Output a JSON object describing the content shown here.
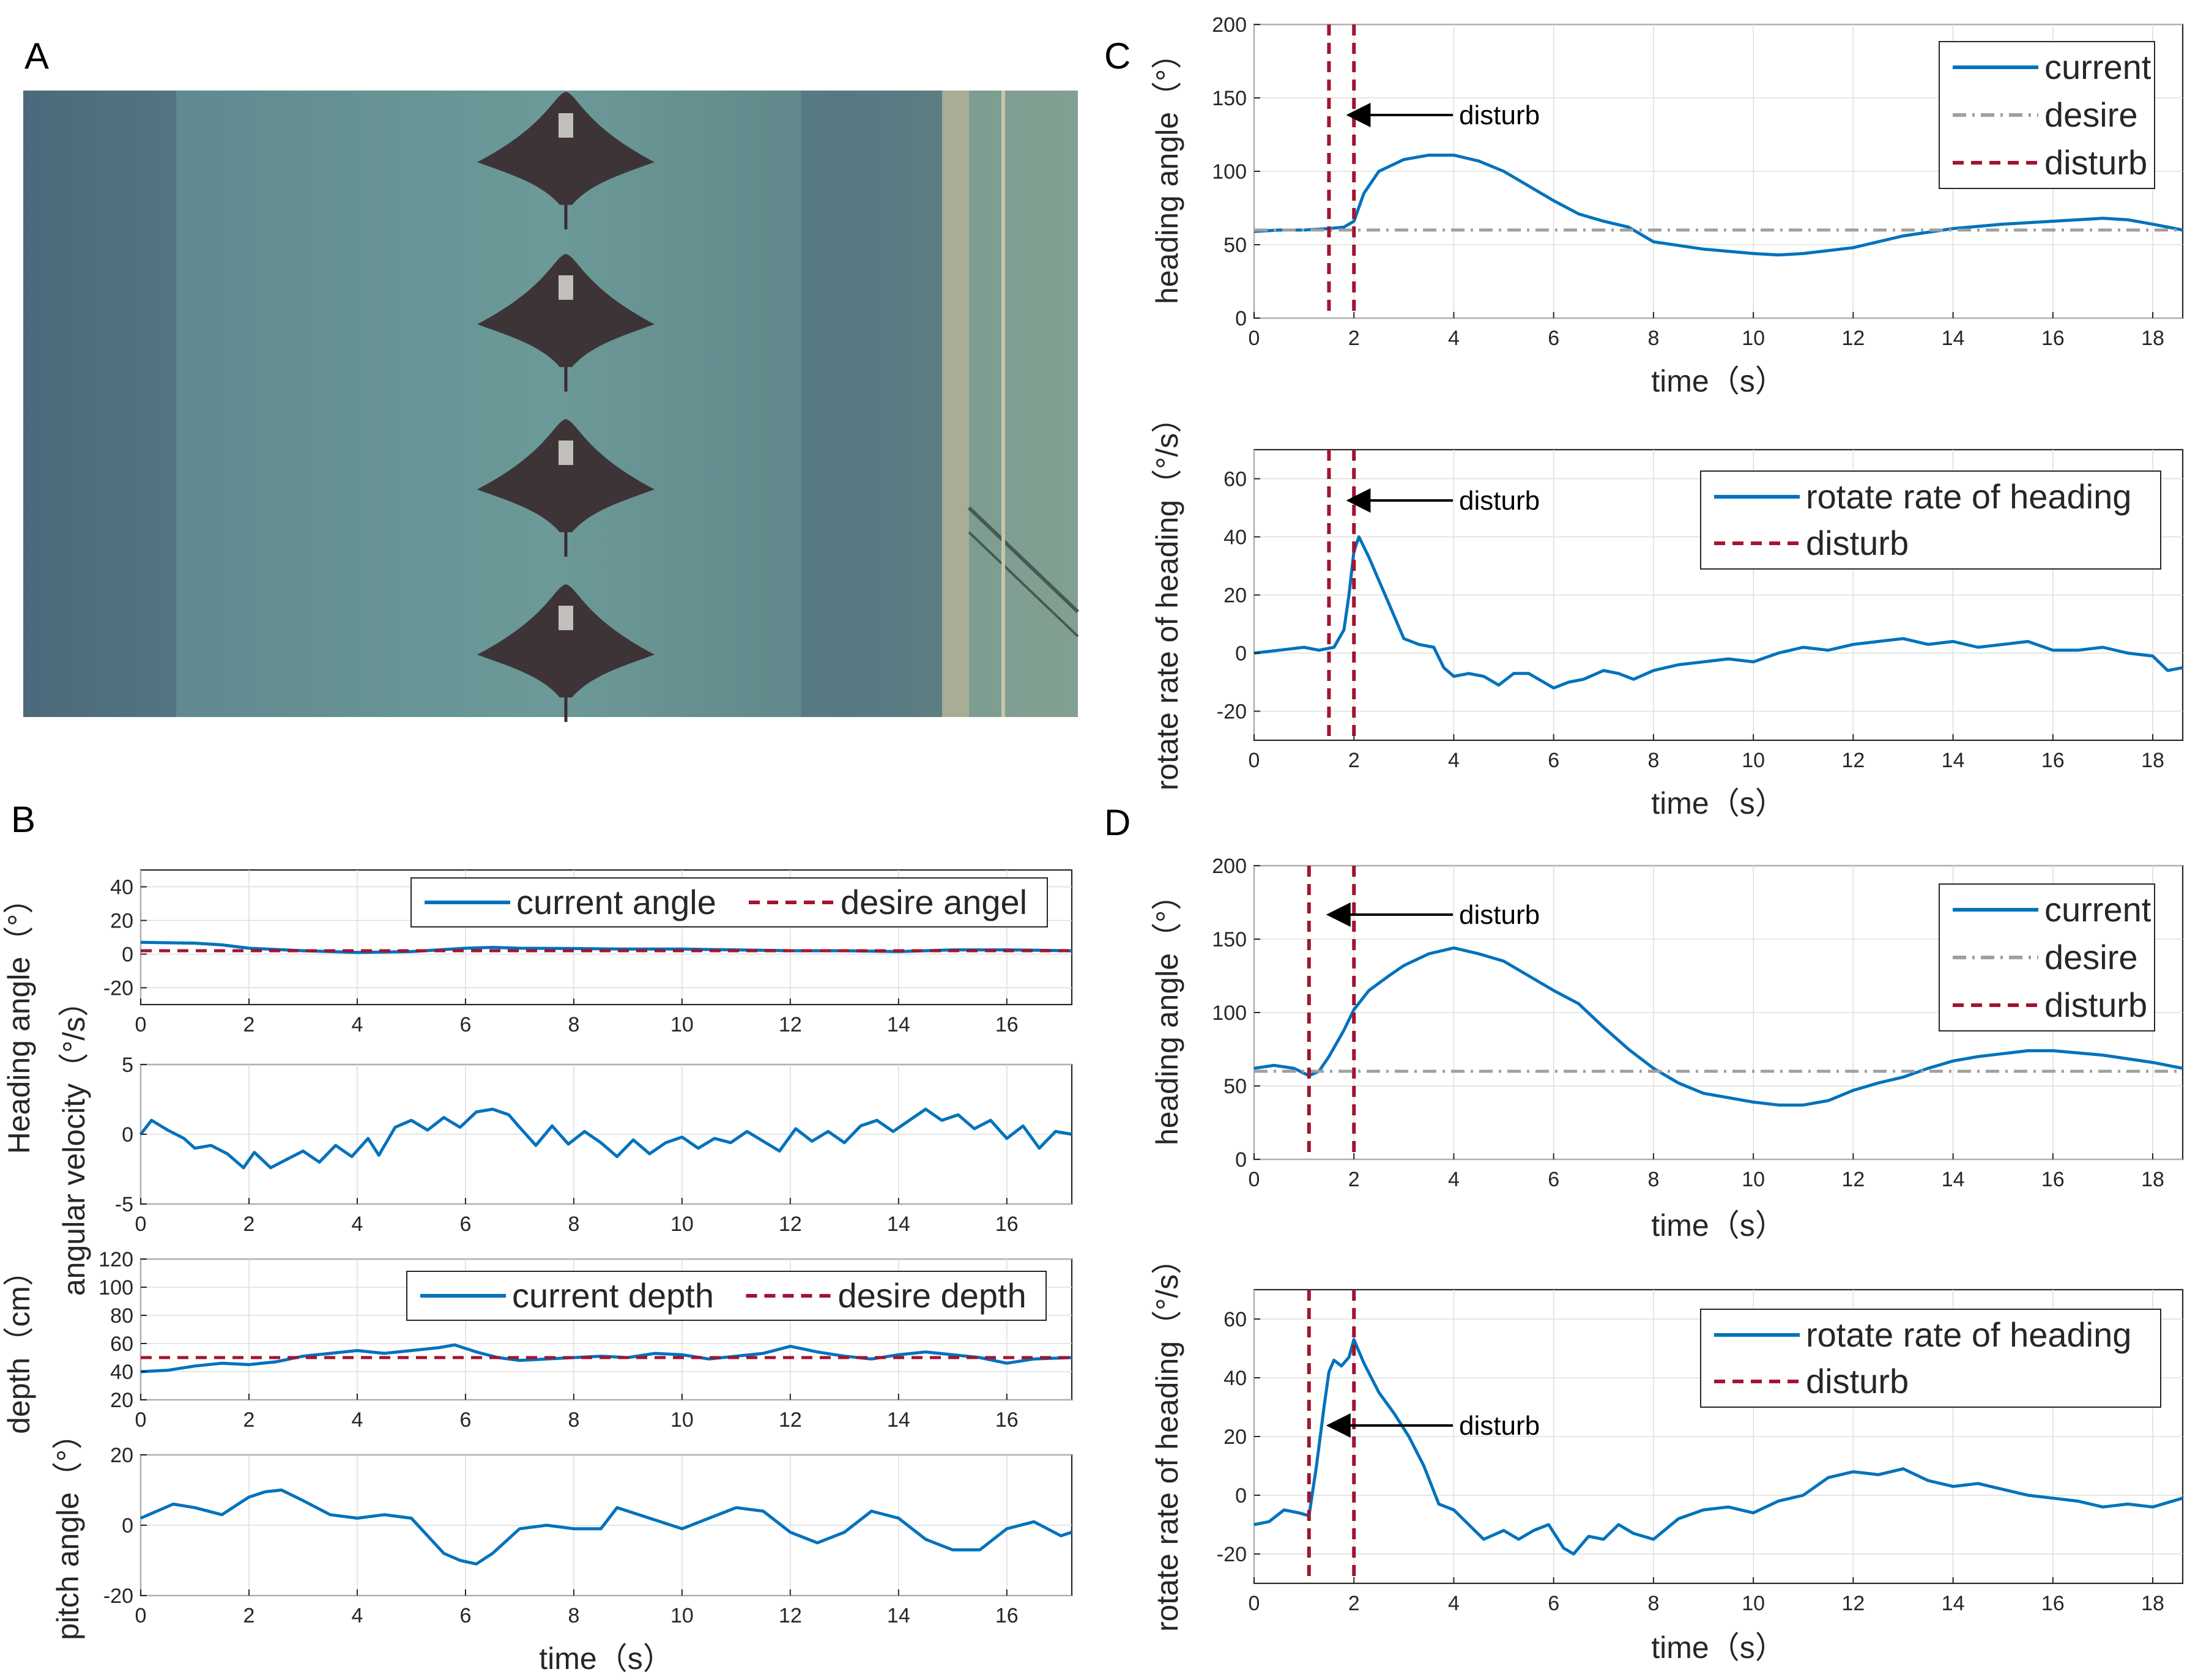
{
  "panel_labels": [
    "A",
    "B",
    "C",
    "D"
  ],
  "colors": {
    "current": "#0072BD",
    "desire_red": "#A2142F",
    "desire_gray": "#A0A0A0",
    "axis": "#262626"
  },
  "photo": {
    "description_icon": "manta-ray-robot-icon",
    "count": 4
  },
  "chart_data": [
    {
      "id": "B1",
      "type": "line",
      "ylabel": "Heading angle（°）",
      "xlim": [
        0,
        17.2
      ],
      "ylim": [
        -30,
        50
      ],
      "xticks": [
        0,
        2,
        4,
        6,
        8,
        10,
        12,
        14,
        16
      ],
      "yticks": [
        -20,
        0,
        20,
        40
      ],
      "legend_placement": "top-right",
      "legend_layout": "horizontal",
      "series": [
        {
          "name": "current angle",
          "style": "solid",
          "color": "#0072BD",
          "x": [
            0,
            1,
            1.5,
            2,
            3,
            4,
            5,
            6,
            6.5,
            7,
            8,
            9,
            10,
            11,
            12,
            13,
            14,
            15,
            16,
            17.2
          ],
          "y": [
            7,
            6.5,
            5.5,
            3.5,
            2,
            1,
            1.5,
            3.5,
            4,
            3.5,
            3.3,
            3,
            3,
            2.5,
            2,
            2,
            1.5,
            2.5,
            2.5,
            2
          ]
        },
        {
          "name": "desire angel",
          "style": "dashed",
          "color": "#A2142F",
          "x": [
            0,
            17.2
          ],
          "y": [
            2,
            2
          ]
        }
      ]
    },
    {
      "id": "B2",
      "type": "line",
      "ylabel": "angular velocity（°/s）",
      "xlim": [
        0,
        17.2
      ],
      "ylim": [
        -5,
        5
      ],
      "xticks": [
        0,
        2,
        4,
        6,
        8,
        10,
        12,
        14,
        16
      ],
      "yticks": [
        -5,
        0,
        5
      ],
      "series": [
        {
          "name": "",
          "style": "solid",
          "color": "#0072BD",
          "x": [
            0,
            0.2,
            0.5,
            0.8,
            1,
            1.3,
            1.6,
            1.9,
            2.1,
            2.4,
            2.7,
            3,
            3.3,
            3.6,
            3.9,
            4.2,
            4.4,
            4.7,
            5,
            5.3,
            5.6,
            5.9,
            6.2,
            6.5,
            6.8,
            7,
            7.3,
            7.6,
            7.9,
            8.2,
            8.5,
            8.8,
            9.1,
            9.4,
            9.7,
            10,
            10.3,
            10.6,
            10.9,
            11.2,
            11.5,
            11.8,
            12.1,
            12.4,
            12.7,
            13,
            13.3,
            13.6,
            13.9,
            14.2,
            14.5,
            14.8,
            15.1,
            15.4,
            15.7,
            16,
            16.3,
            16.6,
            16.9,
            17.2
          ],
          "y": [
            0,
            1,
            0.3,
            -0.3,
            -1,
            -0.8,
            -1.4,
            -2.4,
            -1.3,
            -2.4,
            -1.8,
            -1.2,
            -2,
            -0.8,
            -1.6,
            -0.3,
            -1.5,
            0.5,
            1,
            0.3,
            1.2,
            0.5,
            1.6,
            1.8,
            1.4,
            0.5,
            -0.8,
            0.6,
            -0.7,
            0.2,
            -0.6,
            -1.6,
            -0.4,
            -1.4,
            -0.6,
            -0.2,
            -1,
            -0.3,
            -0.6,
            0.2,
            -0.5,
            -1.2,
            0.4,
            -0.5,
            0.2,
            -0.6,
            0.6,
            1,
            0.2,
            1,
            1.8,
            1,
            1.4,
            0.4,
            1,
            -0.3,
            0.6,
            -1,
            0.2,
            0
          ]
        }
      ]
    },
    {
      "id": "B3",
      "type": "line",
      "ylabel": "depth（cm）",
      "xlim": [
        0,
        17.2
      ],
      "ylim": [
        20,
        120
      ],
      "xticks": [
        0,
        2,
        4,
        6,
        8,
        10,
        12,
        14,
        16
      ],
      "yticks": [
        20,
        40,
        60,
        80,
        100,
        120
      ],
      "legend_placement": "top-right",
      "legend_layout": "horizontal",
      "series": [
        {
          "name": "current depth",
          "style": "solid",
          "color": "#0072BD",
          "x": [
            0,
            0.5,
            1,
            1.5,
            2,
            2.5,
            3,
            3.5,
            4,
            4.5,
            5,
            5.5,
            5.8,
            6.2,
            6.6,
            7,
            7.5,
            8,
            8.5,
            9,
            9.5,
            10,
            10.5,
            11,
            11.5,
            12,
            12.5,
            13,
            13.5,
            14,
            14.5,
            15,
            15.5,
            16,
            16.5,
            17.2
          ],
          "y": [
            40,
            41,
            44,
            46,
            45,
            47,
            51,
            53,
            55,
            53,
            55,
            57,
            59,
            54,
            50,
            48,
            49,
            50,
            51,
            50,
            53,
            52,
            49,
            51,
            53,
            58,
            54,
            51,
            49,
            52,
            54,
            52,
            50,
            46,
            49,
            50
          ]
        },
        {
          "name": "desire depth",
          "style": "dashed",
          "color": "#A2142F",
          "x": [
            0,
            17.2
          ],
          "y": [
            50,
            50
          ]
        }
      ]
    },
    {
      "id": "B4",
      "type": "line",
      "ylabel": "pitch angle（°）",
      "xlabel": "time（s）",
      "xlim": [
        0,
        17.2
      ],
      "ylim": [
        -20,
        20
      ],
      "xticks": [
        0,
        2,
        4,
        6,
        8,
        10,
        12,
        14,
        16
      ],
      "yticks": [
        -20,
        0,
        20
      ],
      "series": [
        {
          "name": "",
          "style": "solid",
          "color": "#0072BD",
          "x": [
            0,
            0.3,
            0.6,
            1,
            1.5,
            2,
            2.3,
            2.6,
            3,
            3.5,
            4,
            4.5,
            5,
            5.3,
            5.6,
            5.9,
            6.2,
            6.5,
            7,
            7.5,
            8,
            8.5,
            8.8,
            9.2,
            9.6,
            10,
            10.5,
            11,
            11.5,
            12,
            12.5,
            13,
            13.5,
            14,
            14.5,
            15,
            15.5,
            16,
            16.5,
            17,
            17.2
          ],
          "y": [
            2,
            4,
            6,
            5,
            3,
            8,
            9.5,
            10,
            7,
            3,
            2,
            3,
            2,
            -3,
            -8,
            -10,
            -11,
            -8,
            -1,
            0,
            -1,
            -1,
            5,
            3,
            1,
            -1,
            2,
            5,
            4,
            -2,
            -5,
            -2,
            4,
            2,
            -4,
            -7,
            -7,
            -1,
            1,
            -3,
            -2
          ]
        }
      ]
    },
    {
      "id": "C1",
      "type": "line",
      "ylabel": "heading angle（°）",
      "xlabel": "time（s）",
      "xlim": [
        0,
        18.6
      ],
      "ylim": [
        0,
        200
      ],
      "xticks": [
        0,
        2,
        4,
        6,
        8,
        10,
        12,
        14,
        16,
        18
      ],
      "yticks": [
        0,
        50,
        100,
        150,
        200
      ],
      "legend_placement": "top-right",
      "legend_layout": "vertical",
      "annotation": "disturb",
      "series": [
        {
          "name": "current",
          "style": "solid",
          "color": "#0072BD",
          "x": [
            0,
            0.5,
            1,
            1.5,
            1.8,
            2,
            2.2,
            2.5,
            3,
            3.5,
            4,
            4.5,
            5,
            5.5,
            6,
            6.5,
            7,
            7.5,
            8,
            9,
            10,
            10.5,
            11,
            12,
            13,
            14,
            15,
            16,
            17,
            17.5,
            18,
            18.6
          ],
          "y": [
            59,
            60,
            60,
            61,
            62,
            66,
            85,
            100,
            108,
            111,
            111,
            107,
            100,
            90,
            80,
            71,
            66,
            62,
            52,
            47,
            44,
            43,
            44,
            48,
            56,
            61,
            64,
            66,
            68,
            67,
            64,
            60
          ]
        },
        {
          "name": "desire",
          "style": "dashdot",
          "color": "#A0A0A0",
          "x": [
            0,
            18.6
          ],
          "y": [
            60,
            60
          ]
        },
        {
          "name": "disturb",
          "style": "dashed",
          "color": "#A2142F",
          "vlines": [
            1.5,
            2
          ]
        }
      ]
    },
    {
      "id": "C2",
      "type": "line",
      "ylabel": "rotate rate of heading（°/s）",
      "xlabel": "time（s）",
      "xlim": [
        0,
        18.6
      ],
      "ylim": [
        -30,
        70
      ],
      "xticks": [
        0,
        2,
        4,
        6,
        8,
        10,
        12,
        14,
        16,
        18
      ],
      "yticks": [
        -20,
        0,
        20,
        40,
        60
      ],
      "legend_placement": "top-right",
      "legend_layout": "vertical",
      "annotation": "disturb",
      "series": [
        {
          "name": "rotate rate of heading",
          "style": "solid",
          "color": "#0072BD",
          "x": [
            0,
            0.5,
            1,
            1.3,
            1.6,
            1.8,
            1.9,
            2,
            2.1,
            2.3,
            2.5,
            2.7,
            3,
            3.3,
            3.6,
            3.8,
            4,
            4.3,
            4.6,
            4.9,
            5.2,
            5.5,
            5.8,
            6,
            6.3,
            6.6,
            7,
            7.3,
            7.6,
            8,
            8.5,
            9,
            9.5,
            10,
            10.5,
            11,
            11.5,
            12,
            12.5,
            13,
            13.5,
            14,
            14.5,
            15,
            15.5,
            16,
            16.5,
            17,
            17.5,
            18,
            18.3,
            18.6
          ],
          "y": [
            0,
            1,
            2,
            1,
            2,
            8,
            20,
            35,
            40,
            33,
            25,
            17,
            5,
            3,
            2,
            -5,
            -8,
            -7,
            -8,
            -11,
            -7,
            -7,
            -10,
            -12,
            -10,
            -9,
            -6,
            -7,
            -9,
            -6,
            -4,
            -3,
            -2,
            -3,
            0,
            2,
            1,
            3,
            4,
            5,
            3,
            4,
            2,
            3,
            4,
            1,
            1,
            2,
            0,
            -1,
            -6,
            -5
          ]
        },
        {
          "name": "disturb",
          "style": "dashed",
          "color": "#A2142F",
          "vlines": [
            1.5,
            2
          ]
        }
      ]
    },
    {
      "id": "D1",
      "type": "line",
      "ylabel": "heading angle（°）",
      "xlabel": "time（s）",
      "xlim": [
        0,
        18.6
      ],
      "ylim": [
        0,
        200
      ],
      "xticks": [
        0,
        2,
        4,
        6,
        8,
        10,
        12,
        14,
        16,
        18
      ],
      "yticks": [
        0,
        50,
        100,
        150,
        200
      ],
      "legend_placement": "top-right",
      "legend_layout": "vertical",
      "annotation": "disturb",
      "series": [
        {
          "name": "current",
          "style": "solid",
          "color": "#0072BD",
          "x": [
            0,
            0.4,
            0.8,
            1.1,
            1.3,
            1.5,
            1.8,
            2,
            2.3,
            2.7,
            3,
            3.5,
            4,
            4.5,
            5,
            5.5,
            6,
            6.5,
            7,
            7.5,
            8,
            8.5,
            9,
            9.5,
            10,
            10.5,
            11,
            11.5,
            12,
            12.5,
            13,
            13.5,
            14,
            14.5,
            15,
            15.5,
            16,
            17,
            18,
            18.6
          ],
          "y": [
            62,
            64,
            62,
            57,
            60,
            70,
            88,
            102,
            115,
            125,
            132,
            140,
            144,
            140,
            135,
            125,
            115,
            106,
            90,
            75,
            62,
            52,
            45,
            42,
            39,
            37,
            37,
            40,
            47,
            52,
            56,
            62,
            67,
            70,
            72,
            74,
            74,
            71,
            66,
            62
          ]
        },
        {
          "name": "desire",
          "style": "dashdot",
          "color": "#A0A0A0",
          "x": [
            0,
            18.6
          ],
          "y": [
            60,
            60
          ]
        },
        {
          "name": "disturb",
          "style": "dashed",
          "color": "#A2142F",
          "vlines": [
            1.1,
            2
          ]
        }
      ]
    },
    {
      "id": "D2",
      "type": "line",
      "ylabel": "rotate rate of heading（°/s）",
      "xlabel": "time（s）",
      "xlim": [
        0,
        18.6
      ],
      "ylim": [
        -30,
        70
      ],
      "xticks": [
        0,
        2,
        4,
        6,
        8,
        10,
        12,
        14,
        16,
        18
      ],
      "yticks": [
        -20,
        0,
        20,
        40,
        60
      ],
      "legend_placement": "top-right",
      "legend_layout": "vertical",
      "annotation": "disturb",
      "series": [
        {
          "name": "rotate rate of heading",
          "style": "solid",
          "color": "#0072BD",
          "x": [
            0,
            0.3,
            0.6,
            0.9,
            1.1,
            1.25,
            1.4,
            1.5,
            1.6,
            1.75,
            1.9,
            2,
            2.2,
            2.5,
            2.8,
            3.1,
            3.4,
            3.7,
            4,
            4.3,
            4.6,
            5,
            5.3,
            5.6,
            5.9,
            6.2,
            6.4,
            6.7,
            7,
            7.3,
            7.6,
            8,
            8.5,
            9,
            9.5,
            10,
            10.5,
            11,
            11.5,
            12,
            12.5,
            13,
            13.5,
            14,
            14.5,
            15,
            15.5,
            16,
            16.5,
            17,
            17.5,
            18,
            18.6
          ],
          "y": [
            -10,
            -9,
            -5,
            -6,
            -7,
            10,
            30,
            42,
            46,
            44,
            47,
            53,
            45,
            35,
            28,
            20,
            10,
            -3,
            -5,
            -10,
            -15,
            -12,
            -15,
            -12,
            -10,
            -18,
            -20,
            -14,
            -15,
            -10,
            -13,
            -15,
            -8,
            -5,
            -4,
            -6,
            -2,
            0,
            6,
            8,
            7,
            9,
            5,
            3,
            4,
            2,
            0,
            -1,
            -2,
            -4,
            -3,
            -4,
            -1
          ]
        },
        {
          "name": "disturb",
          "style": "dashed",
          "color": "#A2142F",
          "vlines": [
            1.1,
            2
          ]
        }
      ]
    }
  ]
}
